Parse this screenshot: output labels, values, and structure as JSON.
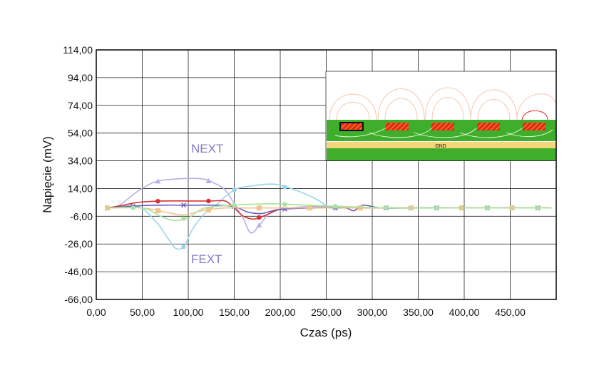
{
  "chart_data": {
    "type": "line",
    "xlabel": "Czas (ps)",
    "ylabel": "Napięcie (mV)",
    "xlim": [
      0,
      500
    ],
    "ylim": [
      -66,
      114
    ],
    "x_ticks": [
      0,
      50,
      100,
      150,
      200,
      250,
      300,
      350,
      400,
      450
    ],
    "x_tick_labels": [
      "0,00",
      "50,00",
      "100,00",
      "150,00",
      "200,00",
      "250,00",
      "300,00",
      "350,00",
      "400,00",
      "450,00"
    ],
    "y_ticks": [
      114,
      94,
      74,
      54,
      34,
      14,
      -6,
      -26,
      -46,
      -66
    ],
    "y_tick_labels": [
      "114,00",
      "94,00",
      "74,00",
      "54,00",
      "34,00",
      "14,00",
      "-6,00",
      "-26,00",
      "-46,00",
      "-66,00"
    ],
    "grid": true,
    "annotations": {
      "next": "NEXT",
      "fext": "FEXT",
      "gnd": "GND"
    },
    "annotation_color": "#8878c8",
    "series": [
      {
        "color": "#b8b0e8",
        "marker": "triangle",
        "points": [
          [
            12,
            0
          ],
          [
            25,
            2
          ],
          [
            45,
            12
          ],
          [
            65,
            19
          ],
          [
            90,
            21
          ],
          [
            115,
            21
          ],
          [
            128,
            18
          ],
          [
            140,
            13
          ],
          [
            150,
            3
          ],
          [
            160,
            -8
          ],
          [
            168,
            -18
          ],
          [
            178,
            -12
          ],
          [
            190,
            -3
          ],
          [
            210,
            0
          ],
          [
            240,
            1
          ],
          [
            280,
            0
          ],
          [
            340,
            0
          ],
          [
            420,
            0
          ],
          [
            495,
            0
          ]
        ]
      },
      {
        "color": "#9ad4ec",
        "marker": "circle",
        "points": [
          [
            12,
            0
          ],
          [
            45,
            1
          ],
          [
            65,
            -10
          ],
          [
            78,
            -22
          ],
          [
            86,
            -29
          ],
          [
            95,
            -28
          ],
          [
            105,
            -15
          ],
          [
            118,
            -4
          ],
          [
            130,
            2
          ],
          [
            150,
            13
          ],
          [
            170,
            16
          ],
          [
            195,
            17
          ],
          [
            220,
            12
          ],
          [
            240,
            6
          ],
          [
            255,
            0
          ],
          [
            270,
            0
          ],
          [
            300,
            0
          ],
          [
            350,
            0
          ],
          [
            420,
            0
          ],
          [
            495,
            0
          ]
        ]
      },
      {
        "color": "#d83030",
        "marker": "circle",
        "points": [
          [
            12,
            0
          ],
          [
            30,
            2
          ],
          [
            45,
            4
          ],
          [
            70,
            5
          ],
          [
            100,
            5
          ],
          [
            125,
            5
          ],
          [
            140,
            5
          ],
          [
            150,
            0
          ],
          [
            160,
            -6
          ],
          [
            172,
            -8
          ],
          [
            185,
            -5
          ],
          [
            200,
            -1
          ],
          [
            225,
            0
          ],
          [
            260,
            0
          ],
          [
            300,
            0
          ],
          [
            360,
            0
          ],
          [
            420,
            0
          ],
          [
            495,
            0
          ]
        ]
      },
      {
        "color": "#6858b8",
        "marker": "x",
        "points": [
          [
            12,
            0
          ],
          [
            35,
            1
          ],
          [
            60,
            2
          ],
          [
            100,
            2
          ],
          [
            130,
            2
          ],
          [
            150,
            1
          ],
          [
            165,
            -3
          ],
          [
            180,
            -4
          ],
          [
            200,
            -1
          ],
          [
            240,
            0
          ],
          [
            270,
            0
          ],
          [
            280,
            -2
          ],
          [
            290,
            2
          ],
          [
            310,
            0
          ],
          [
            350,
            0
          ],
          [
            420,
            0
          ],
          [
            495,
            0
          ]
        ]
      },
      {
        "color": "#f0c48a",
        "marker": "square",
        "points": [
          [
            12,
            0
          ],
          [
            50,
            0
          ],
          [
            75,
            -3
          ],
          [
            95,
            -5
          ],
          [
            115,
            -2
          ],
          [
            140,
            0
          ],
          [
            170,
            0
          ],
          [
            220,
            0
          ],
          [
            300,
            0
          ],
          [
            380,
            0
          ],
          [
            425,
            0
          ],
          [
            495,
            0
          ]
        ]
      },
      {
        "color": "#a8e4a0",
        "marker": "circle",
        "points": [
          [
            12,
            0
          ],
          [
            50,
            0
          ],
          [
            70,
            -6
          ],
          [
            85,
            -9
          ],
          [
            100,
            -7
          ],
          [
            118,
            0
          ],
          [
            150,
            2
          ],
          [
            190,
            3
          ],
          [
            230,
            2
          ],
          [
            270,
            1
          ],
          [
            320,
            0
          ],
          [
            380,
            0
          ],
          [
            450,
            0
          ],
          [
            495,
            0
          ]
        ]
      }
    ]
  }
}
